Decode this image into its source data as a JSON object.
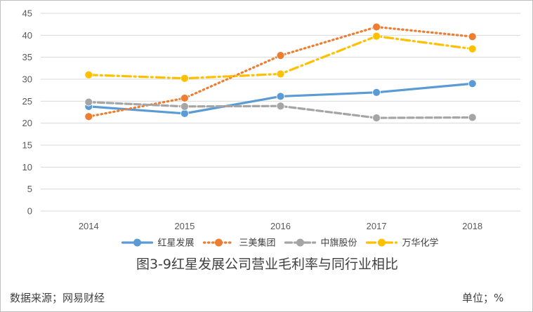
{
  "chart_data": {
    "type": "line",
    "title": "图3-9红星发展公司营业毛利率与同行业相比",
    "x": [
      "2014",
      "2015",
      "2016",
      "2017",
      "2018"
    ],
    "ylim": [
      0,
      45
    ],
    "yticks": [
      0,
      5,
      10,
      15,
      20,
      25,
      30,
      35,
      40,
      45
    ],
    "grid": "horizontal",
    "legend_position": "bottom",
    "series": [
      {
        "name": "红星发展",
        "values": [
          23.8,
          22.2,
          26.1,
          27.0,
          29.0
        ],
        "color": "#5b9bd5",
        "style": "solid"
      },
      {
        "name": "三美集团",
        "values": [
          21.5,
          25.7,
          35.4,
          41.9,
          39.7
        ],
        "color": "#ed7d31",
        "style": "dotted"
      },
      {
        "name": "中旗股份",
        "values": [
          24.8,
          23.8,
          23.9,
          21.2,
          21.3
        ],
        "color": "#a5a5a5",
        "style": "dashed"
      },
      {
        "name": "万华化学",
        "values": [
          31.0,
          30.2,
          31.2,
          39.8,
          36.9
        ],
        "color": "#ffc000",
        "style": "dashdot"
      }
    ]
  },
  "footer": {
    "source": "数据来源；网易财经",
    "unit": "单位；%"
  }
}
